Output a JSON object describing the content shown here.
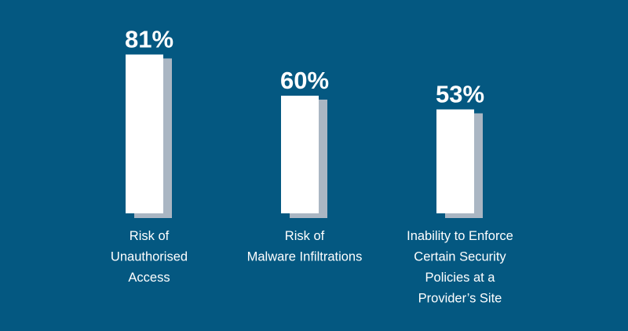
{
  "chart_data": {
    "type": "bar",
    "categories": [
      [
        "Risk of",
        "Unauthorised",
        "Access"
      ],
      [
        "Risk of",
        "Malware Infiltrations"
      ],
      [
        "Inability to Enforce",
        "Certain Security",
        "Policies at a",
        "Provider’s Site"
      ]
    ],
    "values": [
      81,
      60,
      53
    ],
    "value_labels": [
      "81%",
      "60%",
      "53%"
    ],
    "title": "",
    "xlabel": "",
    "ylabel": "",
    "ylim": [
      0,
      100
    ],
    "grid": false,
    "legend": "none"
  },
  "colors": {
    "background": "#045881",
    "bar_fill": "#ffffff",
    "bar_shadow": "#aab6c3",
    "text": "#ffffff"
  }
}
